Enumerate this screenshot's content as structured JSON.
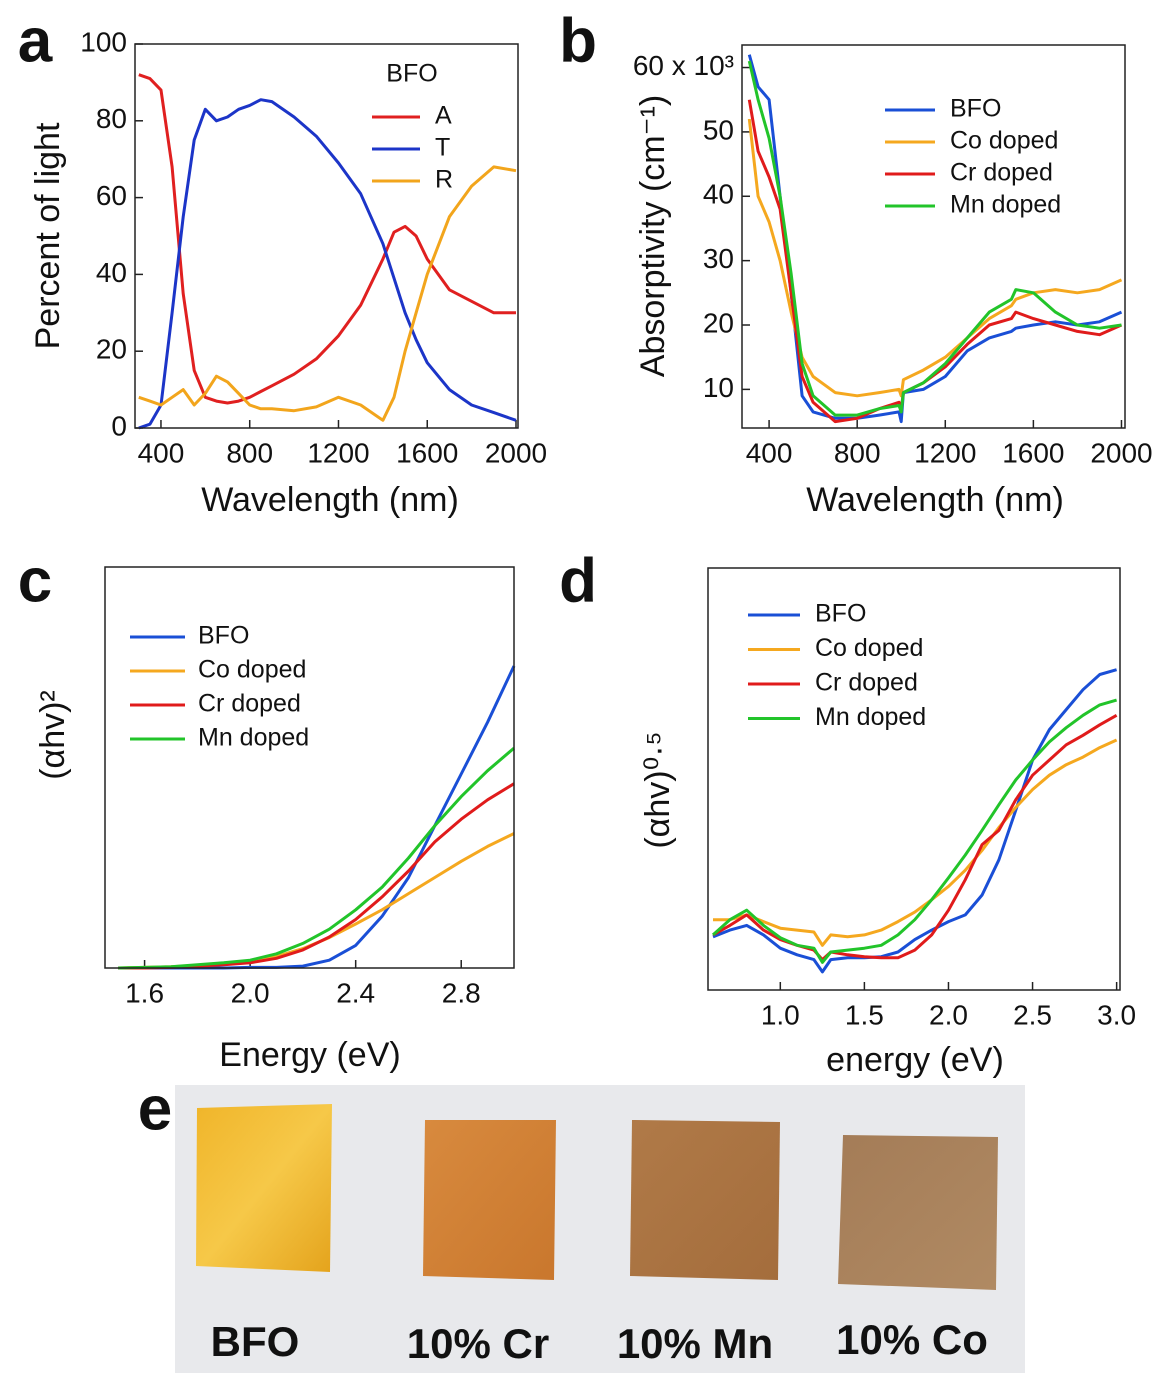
{
  "chart_data": [
    {
      "type": "line",
      "panel_label": "a",
      "xlabel": "Wavelength (nm)",
      "ylabel": "Percent of light",
      "legend_title": "BFO",
      "legend": "upper right",
      "xlim": [
        283,
        2009
      ],
      "ylim": [
        0,
        100
      ],
      "xticks": [
        400,
        800,
        1200,
        1600,
        2000
      ],
      "yticks": [
        0,
        20,
        40,
        60,
        80,
        100
      ],
      "x": [
        300,
        350,
        400,
        450,
        500,
        550,
        600,
        650,
        700,
        750,
        800,
        850,
        900,
        1000,
        1100,
        1200,
        1300,
        1400,
        1450,
        1500,
        1550,
        1600,
        1700,
        1800,
        1900,
        2000
      ],
      "series": [
        {
          "name": "A",
          "color": "#e02020",
          "values": [
            92,
            91,
            88,
            68,
            35,
            15,
            8,
            7,
            6.5,
            7,
            8,
            9.5,
            11,
            14,
            18,
            24,
            32,
            44,
            51,
            52.5,
            50,
            44,
            36,
            33,
            30,
            30
          ]
        },
        {
          "name": "T",
          "color": "#1c35c8",
          "values": [
            0,
            1,
            6,
            30,
            55,
            75,
            83,
            80,
            81,
            83,
            84,
            85.5,
            85,
            81,
            76,
            69,
            61,
            48,
            39,
            30,
            23,
            17,
            10,
            6,
            4,
            2
          ]
        },
        {
          "name": "R",
          "color": "#f2a51c",
          "values": [
            8,
            7,
            6,
            8,
            10,
            6,
            9,
            13.5,
            12,
            9,
            6,
            5,
            5,
            4.5,
            5.5,
            8,
            6,
            2,
            8,
            20,
            30,
            40,
            55,
            63,
            68,
            67
          ]
        }
      ]
    },
    {
      "type": "line",
      "panel_label": "b",
      "xlabel": "Wavelength (nm)",
      "ylabel": "Absorptivity (cm⁻¹)",
      "legend": "upper right",
      "xlim": [
        277,
        2016
      ],
      "ylim": [
        4,
        63.5
      ],
      "xticks": [
        400,
        800,
        1200,
        1600,
        2000
      ],
      "yticks": [
        10,
        20,
        30,
        40,
        50,
        {
          "value": 60,
          "label": "60 x 10³"
        }
      ],
      "x": [
        310,
        350,
        400,
        450,
        500,
        550,
        600,
        700,
        800,
        900,
        990,
        1000,
        1010,
        1100,
        1200,
        1300,
        1400,
        1500,
        1520,
        1600,
        1700,
        1800,
        1900,
        2000
      ],
      "series": [
        {
          "name": "BFO",
          "color": "#1a4fd6",
          "values": [
            62,
            57,
            55,
            40,
            25,
            9,
            6.5,
            5.5,
            5.5,
            6,
            6.5,
            5,
            9.5,
            10,
            12,
            16,
            18,
            19,
            19.5,
            20,
            20.5,
            20,
            20.5,
            22
          ]
        },
        {
          "name": "Co doped",
          "color": "#f5a81f",
          "values": [
            52,
            40,
            36,
            30,
            22,
            15,
            12,
            9.5,
            9,
            9.5,
            10,
            9,
            11.5,
            13,
            15,
            18,
            21,
            23,
            24,
            25,
            25.5,
            25,
            25.5,
            27
          ]
        },
        {
          "name": "Cr doped",
          "color": "#e01b1b",
          "values": [
            55,
            47,
            43,
            38,
            25,
            12,
            8,
            5,
            5.5,
            7,
            8,
            7,
            9.5,
            11,
            13.5,
            17,
            20,
            21,
            22,
            21,
            20,
            19,
            18.5,
            20
          ]
        },
        {
          "name": "Mn doped",
          "color": "#22c42a",
          "values": [
            61,
            55,
            49,
            40,
            28,
            14,
            9,
            6,
            6,
            7,
            7.5,
            6.5,
            9.5,
            11,
            14,
            18,
            22,
            24,
            25.5,
            25,
            22,
            20,
            19.5,
            20
          ]
        }
      ]
    },
    {
      "type": "line",
      "panel_label": "c",
      "xlabel": "Energy (eV)",
      "ylabel": "(αhv)²",
      "legend": "upper left",
      "xlim": [
        1.45,
        3.0
      ],
      "ylim": [
        0,
        6.2
      ],
      "xticks": [
        1.6,
        {
          "value": 2,
          "label": "2.0"
        },
        2.4,
        2.8
      ],
      "x": [
        1.5,
        1.6,
        1.7,
        1.8,
        1.9,
        2.0,
        2.1,
        2.2,
        2.3,
        2.4,
        2.5,
        2.6,
        2.7,
        2.8,
        2.9,
        3.0
      ],
      "series": [
        {
          "name": "BFO",
          "color": "#1a4fd6",
          "values": [
            0,
            0,
            0,
            0,
            0,
            0.01,
            0.01,
            0.03,
            0.12,
            0.35,
            0.8,
            1.4,
            2.2,
            3.0,
            3.8,
            4.67
          ]
        },
        {
          "name": "Co doped",
          "color": "#f5a81f",
          "values": [
            0,
            0.01,
            0.02,
            0.04,
            0.07,
            0.1,
            0.18,
            0.3,
            0.47,
            0.68,
            0.9,
            1.15,
            1.4,
            1.65,
            1.88,
            2.08
          ]
        },
        {
          "name": "Cr doped",
          "color": "#e01b1b",
          "values": [
            0,
            0,
            0.01,
            0.03,
            0.05,
            0.08,
            0.15,
            0.28,
            0.48,
            0.75,
            1.1,
            1.5,
            1.95,
            2.3,
            2.6,
            2.85
          ]
        },
        {
          "name": "Mn doped",
          "color": "#22c42a",
          "values": [
            0,
            0.01,
            0.02,
            0.05,
            0.08,
            0.12,
            0.22,
            0.38,
            0.6,
            0.9,
            1.25,
            1.7,
            2.2,
            2.65,
            3.05,
            3.4
          ]
        }
      ]
    },
    {
      "type": "line",
      "panel_label": "d",
      "xlabel": "energy (eV)",
      "ylabel": "(αhv)⁰·⁵",
      "legend": "upper left",
      "xlim": [
        0.57,
        3.02
      ],
      "ylim": [
        0,
        4.44
      ],
      "xticks": [
        {
          "value": 1,
          "label": "1.0"
        },
        1.5,
        {
          "value": 2,
          "label": "2.0"
        },
        2.5,
        {
          "value": 3,
          "label": "3.0"
        }
      ],
      "x": [
        0.6,
        0.7,
        0.8,
        0.9,
        1.0,
        1.1,
        1.2,
        1.25,
        1.3,
        1.4,
        1.5,
        1.6,
        1.7,
        1.8,
        1.9,
        2.0,
        2.1,
        2.2,
        2.3,
        2.4,
        2.5,
        2.6,
        2.7,
        2.8,
        2.9,
        3.0
      ],
      "series": [
        {
          "name": "BFO",
          "color": "#1a4fd6",
          "values": [
            0.56,
            0.63,
            0.68,
            0.58,
            0.44,
            0.37,
            0.32,
            0.19,
            0.32,
            0.34,
            0.34,
            0.35,
            0.4,
            0.53,
            0.63,
            0.72,
            0.79,
            1.0,
            1.37,
            1.89,
            2.42,
            2.74,
            2.95,
            3.16,
            3.32,
            3.37
          ]
        },
        {
          "name": "Co doped",
          "color": "#f5a81f",
          "values": [
            0.74,
            0.74,
            0.79,
            0.72,
            0.65,
            0.63,
            0.61,
            0.47,
            0.58,
            0.56,
            0.58,
            0.63,
            0.72,
            0.82,
            0.95,
            1.09,
            1.26,
            1.47,
            1.71,
            1.92,
            2.11,
            2.26,
            2.37,
            2.45,
            2.55,
            2.63
          ]
        },
        {
          "name": "Cr doped",
          "color": "#e01b1b",
          "values": [
            0.58,
            0.68,
            0.79,
            0.63,
            0.53,
            0.47,
            0.42,
            0.32,
            0.4,
            0.37,
            0.35,
            0.34,
            0.34,
            0.42,
            0.58,
            0.84,
            1.16,
            1.53,
            1.68,
            2.0,
            2.26,
            2.42,
            2.58,
            2.68,
            2.79,
            2.89
          ]
        },
        {
          "name": "Mn doped",
          "color": "#22c42a",
          "values": [
            0.58,
            0.74,
            0.84,
            0.68,
            0.55,
            0.47,
            0.44,
            0.29,
            0.4,
            0.42,
            0.44,
            0.47,
            0.58,
            0.74,
            0.95,
            1.18,
            1.42,
            1.68,
            1.95,
            2.21,
            2.42,
            2.61,
            2.76,
            2.89,
            3.0,
            3.05
          ]
        }
      ]
    }
  ],
  "photo": {
    "panel_label": "e",
    "samples": [
      "BFO",
      "10% Cr",
      "10% Mn",
      "10% Co"
    ]
  }
}
